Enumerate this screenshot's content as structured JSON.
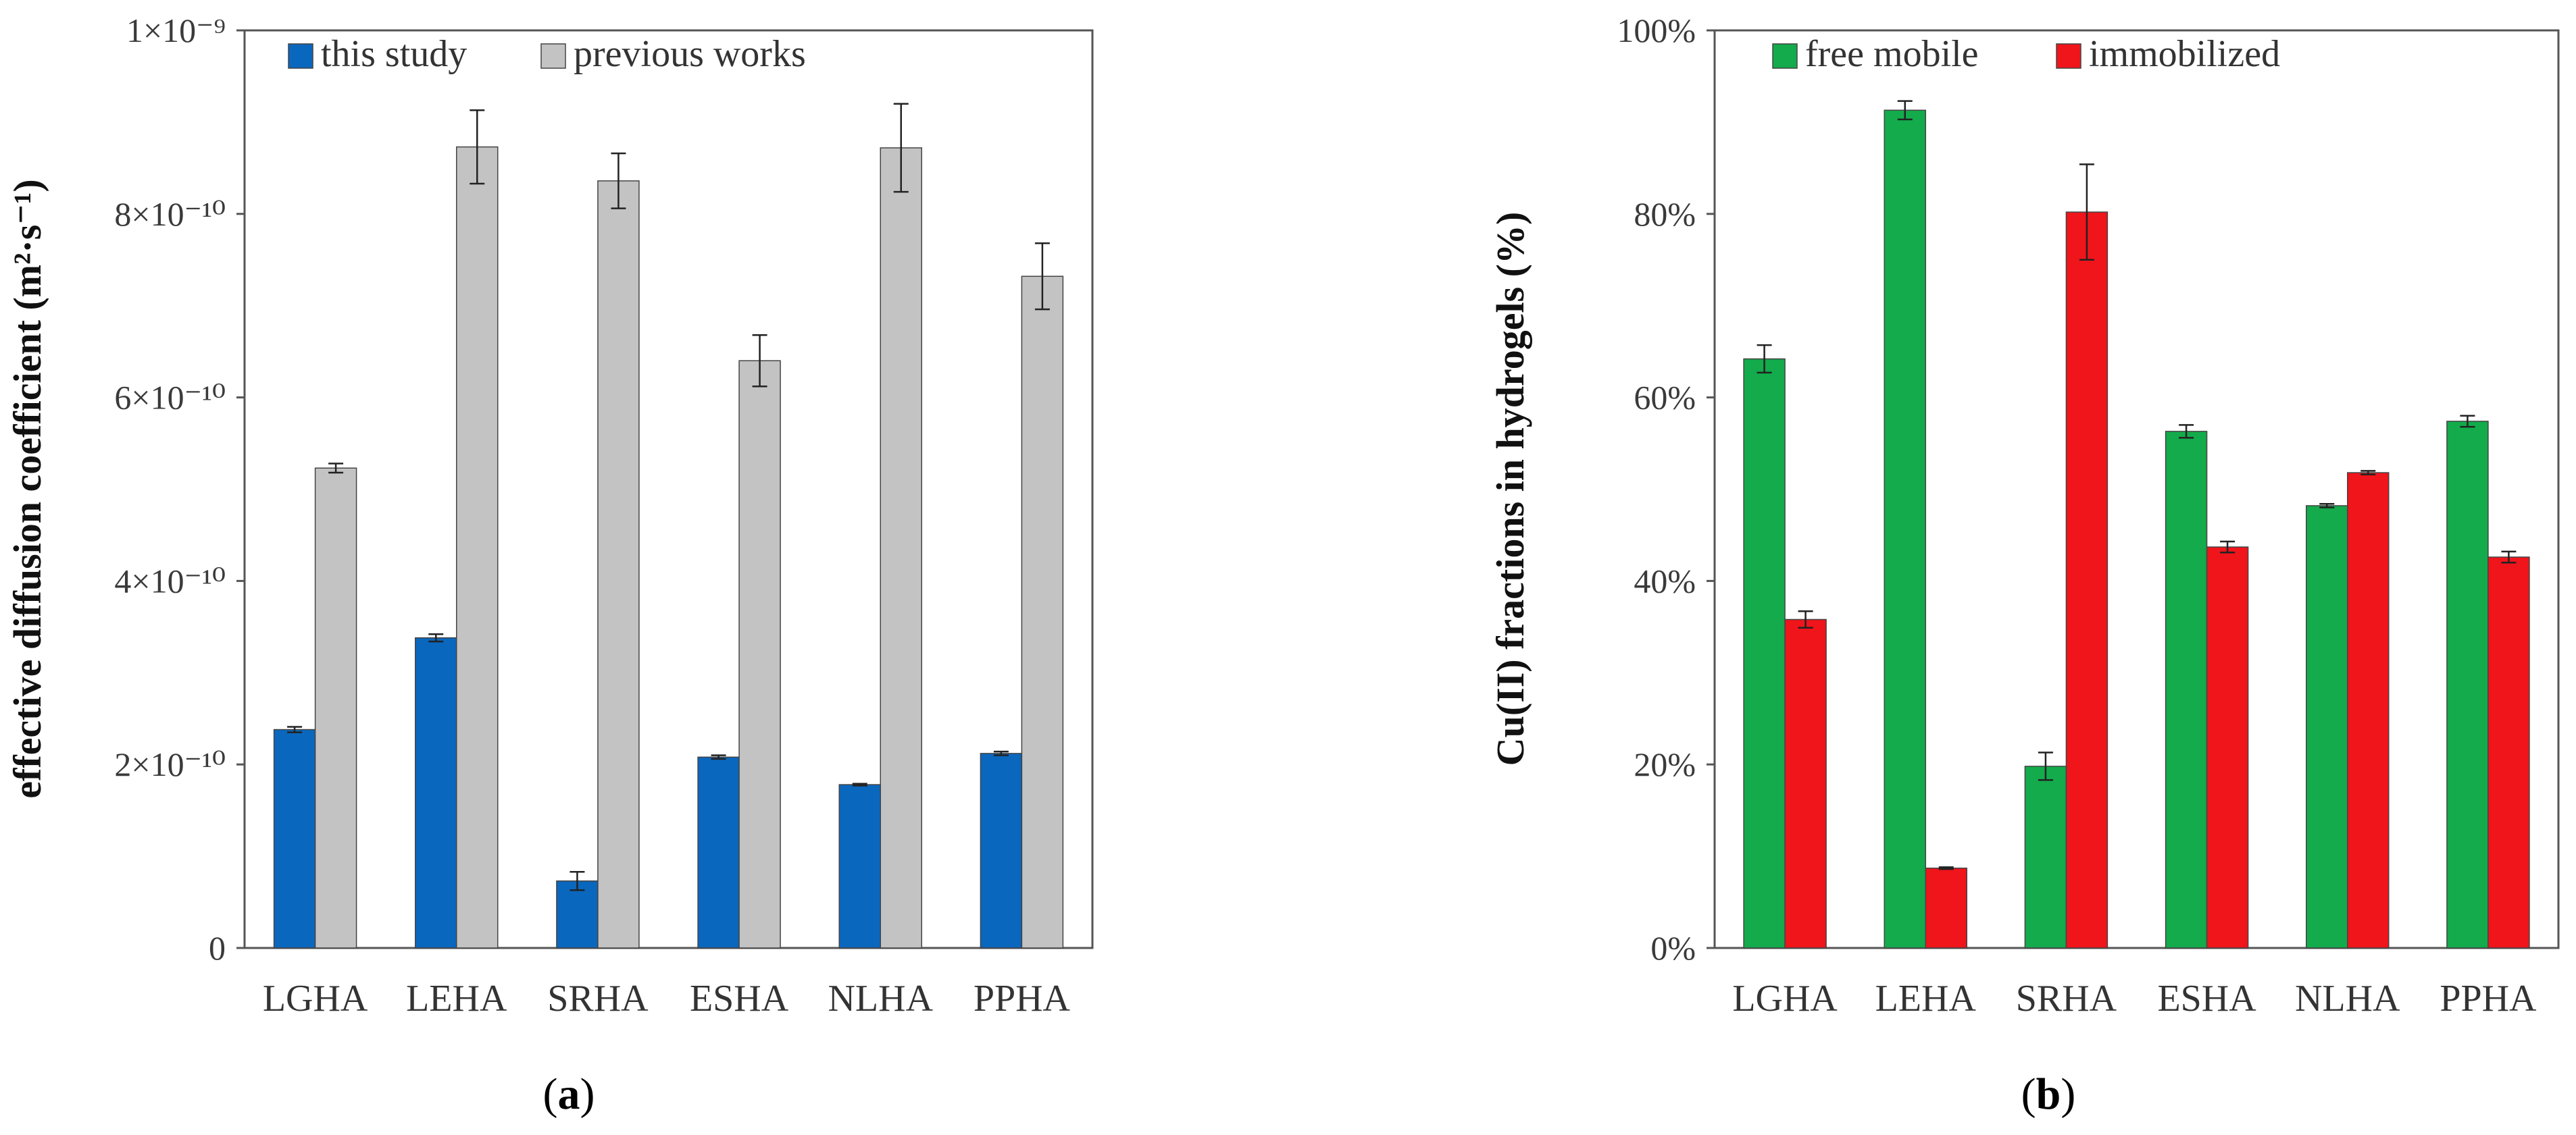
{
  "chart_data": [
    {
      "type": "bar",
      "panel_label": "(a)",
      "panel_letter": "a",
      "categories": [
        "LGHA",
        "LEHA",
        "SRHA",
        "ESHA",
        "NLHA",
        "PPHA"
      ],
      "ylabel": "effective diffusion coefficient (m²·s⁻¹)",
      "ylim": [
        0,
        1e-09
      ],
      "ytick_values": [
        0,
        2e-10,
        4e-10,
        6e-10,
        8e-10,
        1e-09
      ],
      "ytick_labels": [
        "0",
        "2×10⁻¹⁰",
        "4×10⁻¹⁰",
        "6×10⁻¹⁰",
        "8×10⁻¹⁰",
        "1×10⁻⁹"
      ],
      "legend_position": "top",
      "series": [
        {
          "name": "this study",
          "color": "#0a67be",
          "values": [
            2.38e-10,
            3.38e-10,
            7.3e-11,
            2.08e-10,
            1.78e-10,
            2.12e-10
          ],
          "errors": [
            3e-12,
            4e-12,
            1e-11,
            2e-12,
            1e-12,
            2e-12
          ]
        },
        {
          "name": "previous works",
          "color": "#c3c3c3",
          "values": [
            5.23e-10,
            8.73e-10,
            8.36e-10,
            6.4e-10,
            8.72e-10,
            7.32e-10
          ],
          "errors": [
            5e-12,
            4e-11,
            3e-11,
            2.8e-11,
            4.8e-11,
            3.6e-11
          ]
        }
      ]
    },
    {
      "type": "bar",
      "panel_label": "(b)",
      "panel_letter": "b",
      "categories": [
        "LGHA",
        "LEHA",
        "SRHA",
        "ESHA",
        "NLHA",
        "PPHA"
      ],
      "ylabel": "Cu(II) fractions in hydrogels (%)",
      "ylim": [
        0,
        100
      ],
      "ytick_values": [
        0,
        20,
        40,
        60,
        80,
        100
      ],
      "ytick_labels": [
        "0%",
        "20%",
        "40%",
        "60%",
        "80%",
        "100%"
      ],
      "legend_position": "top",
      "series": [
        {
          "name": "free mobile",
          "color": "#13ab4b",
          "values": [
            64.2,
            91.3,
            19.8,
            56.3,
            48.2,
            57.4
          ],
          "errors": [
            1.5,
            1.0,
            1.5,
            0.7,
            0.2,
            0.6
          ]
        },
        {
          "name": "immobilized",
          "color": "#f0141b",
          "values": [
            35.8,
            8.7,
            80.2,
            43.7,
            51.8,
            42.6
          ],
          "errors": [
            0.9,
            0.1,
            5.2,
            0.6,
            0.2,
            0.6
          ]
        }
      ]
    }
  ]
}
